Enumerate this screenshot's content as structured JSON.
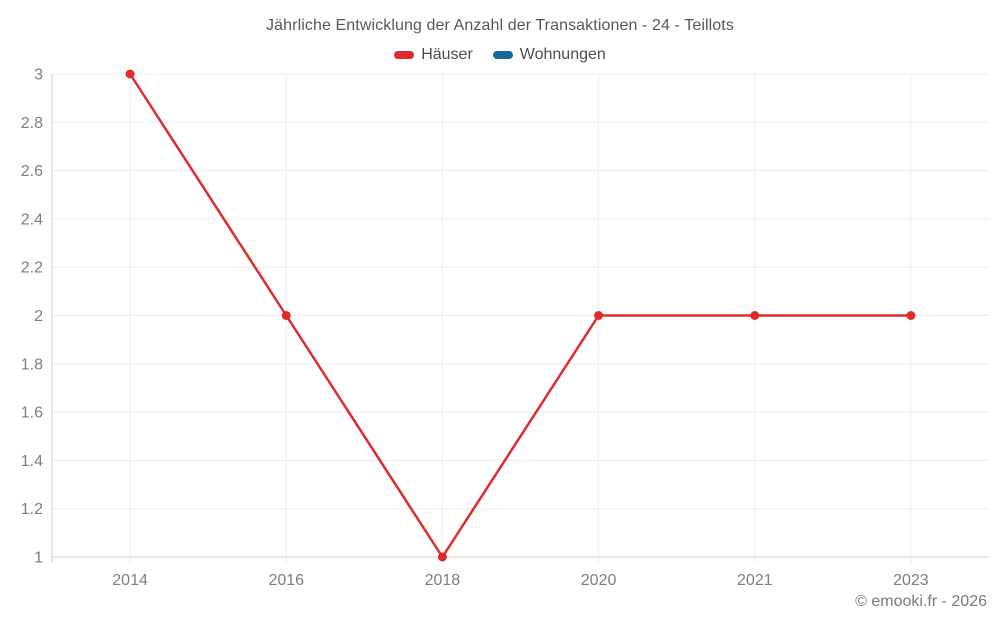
{
  "title": "Jährliche Entwicklung der Anzahl der Transaktionen - 24 - Teillots",
  "legend": {
    "items": [
      {
        "label": "Häuser",
        "color": "#e02b2b"
      },
      {
        "label": "Wohnungen",
        "color": "#17699c"
      }
    ]
  },
  "footer": {
    "credit": "© emooki.fr - 2026"
  },
  "chart_data": {
    "type": "line",
    "title": "Jährliche Entwicklung der Anzahl der Transaktionen - 24 - Teillots",
    "categories": [
      "2014",
      "2016",
      "2018",
      "2020",
      "2021",
      "2023"
    ],
    "series": [
      {
        "name": "Häuser",
        "color": "#e02b2b",
        "values": [
          3,
          2,
          1,
          2,
          2,
          2
        ]
      },
      {
        "name": "Wohnungen",
        "color": "#17699c",
        "values": []
      }
    ],
    "xlabel": "",
    "ylabel": "",
    "ylim": [
      1,
      3
    ],
    "y_ticks": [
      1,
      1.2,
      1.4,
      1.6,
      1.8,
      2,
      2.2,
      2.4,
      2.6,
      2.8,
      3
    ],
    "grid": true,
    "legend_position": "top",
    "marker_radius": 4.5,
    "line_width": 2.5,
    "colors": {
      "grid": "#ececec",
      "axis": "#cfcfcf",
      "tick_label": "#7e7e80"
    }
  }
}
